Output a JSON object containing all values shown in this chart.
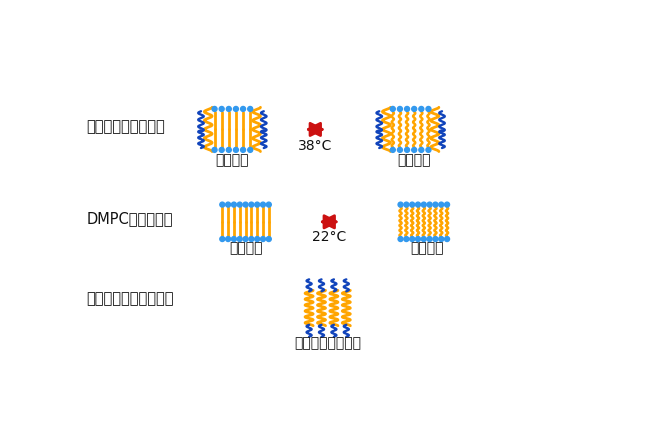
{
  "bg_color": "#ffffff",
  "orange": "#FFA500",
  "blue": "#3399EE",
  "dark_blue": "#1144BB",
  "red": "#CC1111",
  "text_color": "#111111",
  "row1_label": "共集合ナノカプセル",
  "row2_label": "DMPCリポソーム",
  "row3_label": "両親媒性ポリペプチド",
  "gel_label": "ゲル状態",
  "liquid_label": "液晶状態",
  "no_transition": "相転移を示さない",
  "temp1": "38°C",
  "temp2": "22°C",
  "figw": 6.5,
  "figh": 4.24,
  "dpi": 100
}
